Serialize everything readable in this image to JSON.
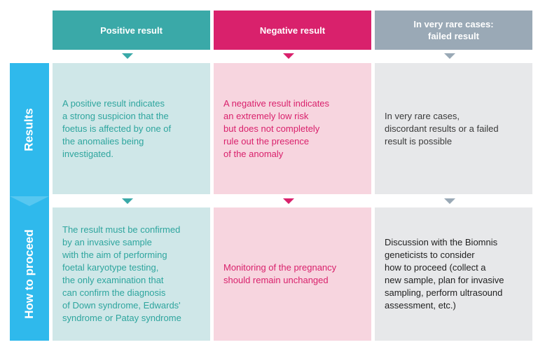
{
  "colors": {
    "positive_header": "#3aa9a8",
    "negative_header": "#d9216c",
    "failed_header": "#9aa9b6",
    "positive_cell": "#cfe7e8",
    "negative_cell": "#f7d5df",
    "failed_cell": "#e7e8ea",
    "positive_text": "#2ea59e",
    "negative_text": "#d9216c",
    "failed_text": "#3a3a3a",
    "side_results": "#2fb9ec",
    "side_proceed": "#2fb9ec"
  },
  "headers": {
    "positive": "Positive result",
    "negative": "Negative result",
    "failed": "In very rare cases:\nfailed result"
  },
  "rows": {
    "results": {
      "label": "Results",
      "positive": "A positive result indicates\na strong suspicion that the\nfoetus is affected by one of\nthe anomalies being\ninvestigated.",
      "negative": "A negative result indicates\nan extremely low risk\nbut does not completely\nrule out the presence\nof the anomaly",
      "failed": "In very rare cases,\ndiscordant results or a failed\nresult is possible"
    },
    "proceed": {
      "label": "How to proceed",
      "positive": "The result must be confirmed\nby an invasive sample\nwith the aim of performing\nfoetal karyotype testing,\nthe only examination that\ncan confirm the diagnosis\nof Down syndrome, Edwards'\nsyndrome or Patay syndrome",
      "negative": "Monitoring of the pregnancy\nshould remain unchanged",
      "failed": "Discussion with the Biomnis\ngeneticists to consider\nhow to proceed (collect a\nnew sample, plan for invasive\nsampling, perform ultrasound\nassessment, etc.)"
    }
  }
}
